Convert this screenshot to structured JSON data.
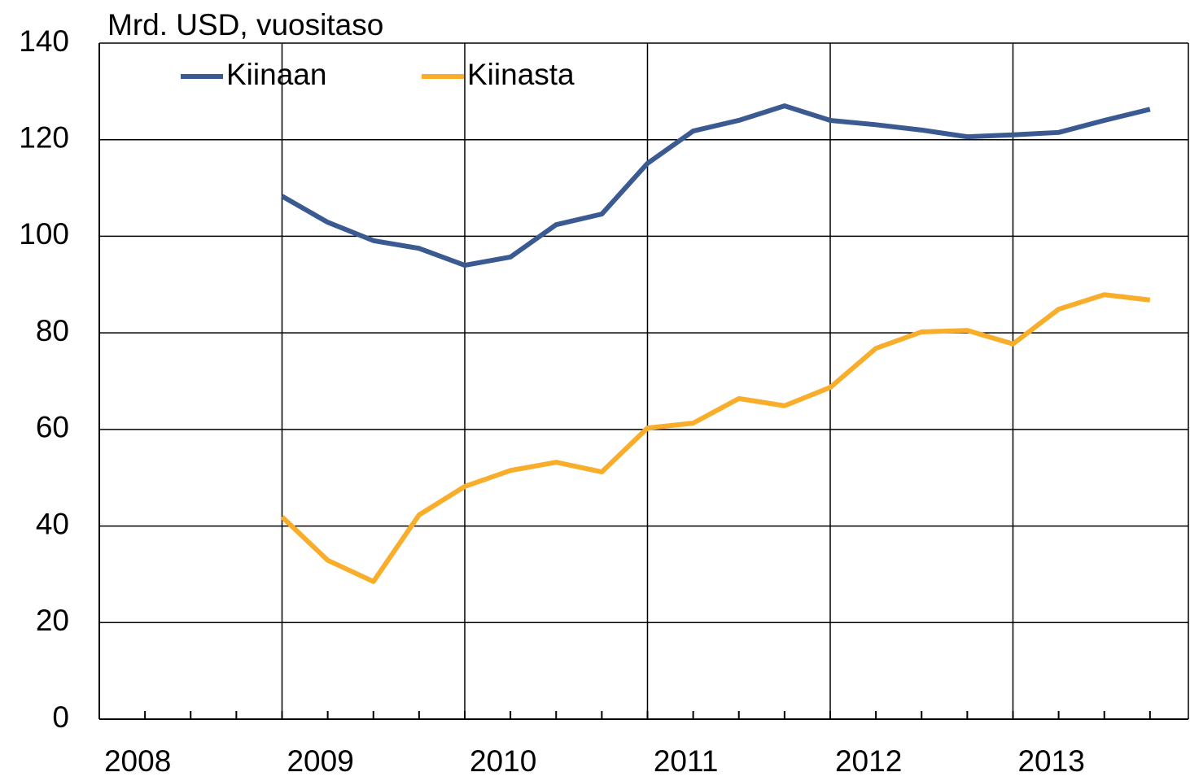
{
  "chart_data": {
    "type": "line",
    "title": "Mrd. USD, vuositaso",
    "x": [
      2009,
      2009.25,
      2009.5,
      2009.75,
      2010,
      2010.25,
      2010.5,
      2010.75,
      2011,
      2011.25,
      2011.5,
      2011.75,
      2012,
      2012.25,
      2012.5,
      2012.75,
      2013,
      2013.25,
      2013.5,
      2013.75
    ],
    "series": [
      {
        "name": "Kiinaan",
        "color": "#3b5a92",
        "values": [
          108.3,
          102.9,
          99.1,
          97.5,
          94.0,
          95.7,
          102.4,
          104.6,
          115.1,
          121.8,
          124.0,
          127.0,
          124.0,
          123.1,
          122.0,
          120.6,
          121.0,
          121.5,
          124.0,
          126.3
        ]
      },
      {
        "name": "Kiinasta",
        "color": "#f9ae2b",
        "values": [
          41.9,
          32.9,
          28.5,
          42.3,
          48.2,
          51.5,
          53.2,
          51.2,
          60.3,
          61.3,
          66.4,
          64.9,
          68.7,
          76.8,
          80.2,
          80.5,
          77.7,
          84.9,
          87.9,
          86.8
        ]
      }
    ],
    "xlim": [
      2008,
      2013.96
    ],
    "xticks": [
      2008,
      2009,
      2010,
      2011,
      2012,
      2013
    ],
    "ylim": [
      0,
      140
    ],
    "yticks": [
      0,
      20,
      40,
      60,
      80,
      100,
      120,
      140
    ],
    "grid": true,
    "legend": "top-left"
  }
}
